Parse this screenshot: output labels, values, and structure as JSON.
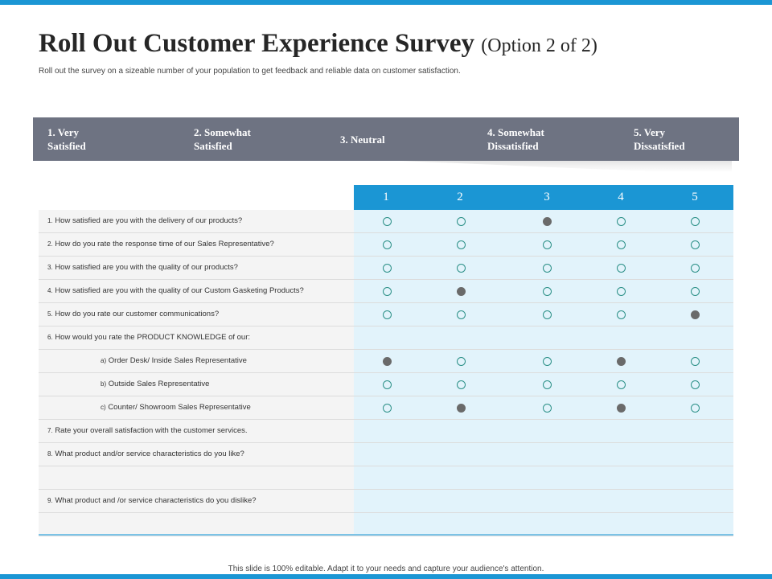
{
  "slide": {
    "title": "Roll Out Customer Experience Survey",
    "title_option": "(Option 2 of  2)",
    "subtitle": "Roll out the survey on a sizeable number of your population to get feedback and reliable data on customer satisfaction.",
    "footer": "This slide is 100% editable. Adapt it to your needs and capture your audience's attention."
  },
  "scale": [
    {
      "line1": "1. Very",
      "line2": "Satisfied"
    },
    {
      "line1": "2. Somewhat",
      "line2": "Satisfied"
    },
    {
      "line1": "3. Neutral",
      "line2": ""
    },
    {
      "line1": "4. Somewhat",
      "line2": "Dissatisfied"
    },
    {
      "line1": "5. Very",
      "line2": "Dissatisfied"
    }
  ],
  "columns": [
    "1",
    "2",
    "3",
    "4",
    "5"
  ],
  "rows": [
    {
      "num": "1.",
      "text": "How satisfied are you with the delivery of our products?",
      "indent": false,
      "selected": [
        3
      ]
    },
    {
      "num": "2.",
      "text": "How do you rate the response time of our Sales Representative?",
      "indent": false,
      "selected": []
    },
    {
      "num": "3.",
      "text": "How satisfied are you with the quality of our products?",
      "indent": false,
      "selected": []
    },
    {
      "num": "4.",
      "text": "How satisfied are you with the quality of our Custom Gasketing Products?",
      "indent": false,
      "selected": [
        2
      ]
    },
    {
      "num": "5.",
      "text": "How do you rate our customer communications?",
      "indent": false,
      "selected": [
        5
      ]
    },
    {
      "num": "6.",
      "text": "How would you rate the PRODUCT  KNOWLEDGE   of our:",
      "indent": false,
      "selected": null
    },
    {
      "num": "a)",
      "text": "Order Desk/ Inside Sales Representative",
      "indent": true,
      "selected": [
        1,
        4
      ]
    },
    {
      "num": "b)",
      "text": "Outside Sales Representative",
      "indent": true,
      "selected": []
    },
    {
      "num": "c)",
      "text": "Counter/  Showroom Sales Representative",
      "indent": true,
      "selected": [
        2,
        4
      ]
    },
    {
      "num": "7.",
      "text": "Rate your overall satisfaction with the customer services.",
      "indent": false,
      "selected": null
    },
    {
      "num": "8.",
      "text": "What product and/or service characteristics do you like?",
      "indent": false,
      "selected": null
    },
    {
      "num": "",
      "text": "",
      "indent": false,
      "selected": null
    },
    {
      "num": "9.",
      "text": "What product and /or service characteristics do you dislike?",
      "indent": false,
      "selected": null
    },
    {
      "num": "",
      "text": "",
      "indent": false,
      "selected": null
    }
  ],
  "colors": {
    "accent": "#1b96d4",
    "band": "#6e7382",
    "light_column": "#e2f3fb",
    "radio_outline": "#2a8f86",
    "radio_filled": "#6a6a6a"
  }
}
